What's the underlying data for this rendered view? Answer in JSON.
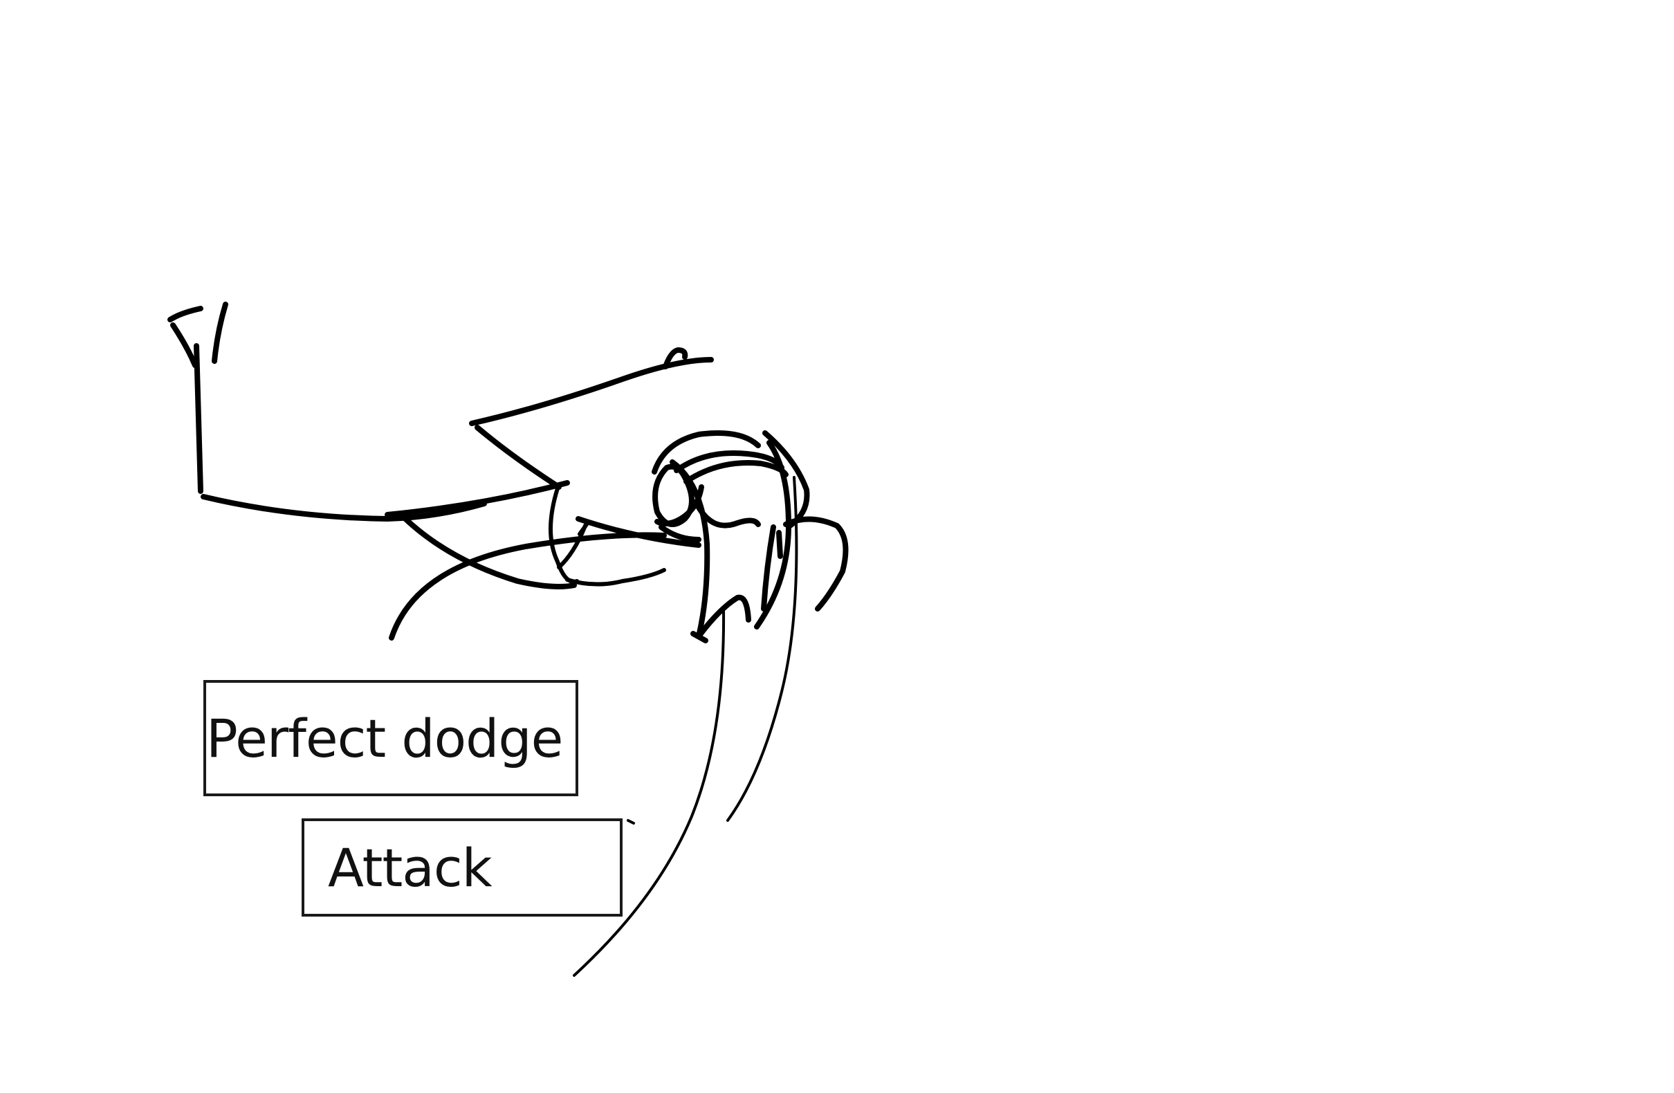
{
  "actions": {
    "perfect_dodge_label": "Perfect dodge",
    "attack_label": "Attack"
  },
  "style": {
    "ink_color": "#000000",
    "background_color": "#ffffff"
  }
}
